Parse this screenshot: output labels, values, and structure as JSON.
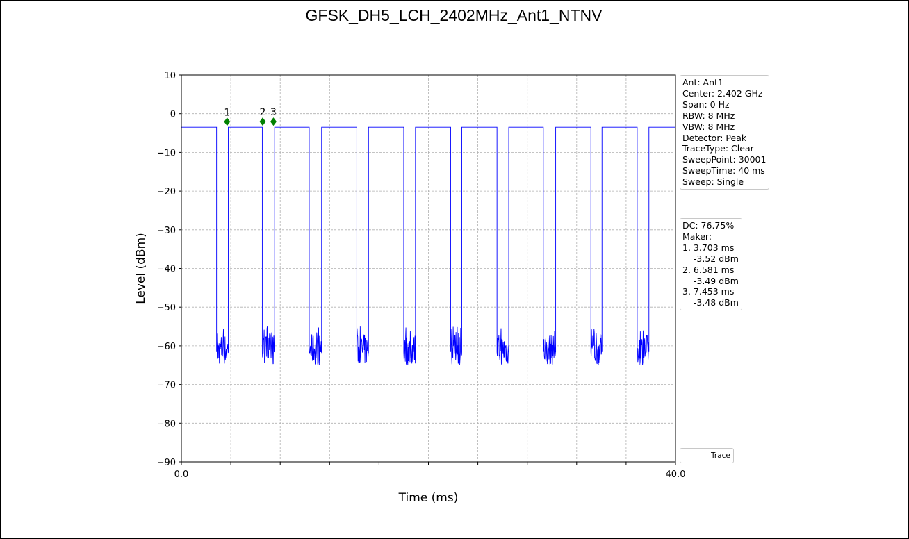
{
  "title": "GFSK_DH5_LCH_2402MHz_Ant1_NTNV",
  "chart_data": {
    "type": "line",
    "title": "GFSK_DH5_LCH_2402MHz_Ant1_NTNV",
    "xlabel": "Time (ms)",
    "ylabel": "Level (dBm)",
    "xlim": [
      0.0,
      40.0
    ],
    "ylim": [
      -90,
      10
    ],
    "x_tick_labels": [
      "0.0",
      "40.0"
    ],
    "y_ticks": [
      10,
      0,
      -10,
      -20,
      -30,
      -40,
      -50,
      -60,
      -70,
      -80,
      -90
    ],
    "grid": true,
    "legend_position": "bottom-right outside",
    "series": [
      {
        "name": "Trace",
        "color": "#0000ff",
        "on_level_dbm": -3.5,
        "off_level_dbm_range": [
          -66,
          -55
        ],
        "on_intervals_ms": [
          [
            0.0,
            2.85
          ],
          [
            3.8,
            6.55
          ],
          [
            7.55,
            10.35
          ],
          [
            11.35,
            14.2
          ],
          [
            15.15,
            18.0
          ],
          [
            18.95,
            21.8
          ],
          [
            22.7,
            25.55
          ],
          [
            26.5,
            29.3
          ],
          [
            30.3,
            33.15
          ],
          [
            34.05,
            36.9
          ],
          [
            37.85,
            40.0
          ]
        ]
      }
    ],
    "markers": [
      {
        "label": "1",
        "x_ms": 3.703,
        "y_dbm": -3.52
      },
      {
        "label": "2",
        "x_ms": 6.581,
        "y_dbm": -3.49
      },
      {
        "label": "3",
        "x_ms": 7.453,
        "y_dbm": -3.48
      }
    ]
  },
  "info_box": {
    "lines": [
      "Ant: Ant1",
      "Center: 2.402 GHz",
      "Span: 0 Hz",
      "RBW: 8 MHz",
      "VBW: 8 MHz",
      "Detector: Peak",
      "TraceType: Clear",
      "SweepPoint: 30001",
      "SweepTime: 40 ms",
      "Sweep: Single"
    ]
  },
  "result_box": {
    "lines": [
      "DC: 76.75%",
      "Maker:",
      "1. 3.703 ms",
      "    -3.52 dBm",
      "2. 6.581 ms",
      "    -3.49 dBm",
      "3. 7.453 ms",
      "    -3.48 dBm"
    ]
  },
  "legend": {
    "label": "Trace"
  },
  "colors": {
    "trace": "#0000ff",
    "marker": "#008000",
    "grid": "#b0b0b0"
  }
}
